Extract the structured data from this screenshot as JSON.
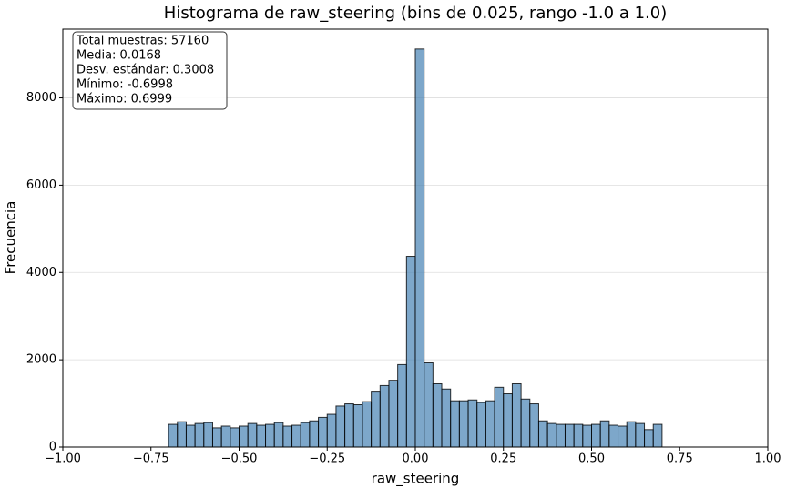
{
  "chart_data": {
    "type": "histogram",
    "title": "Histograma de raw_steering (bins de 0.025, rango -1.0 a 1.0)",
    "x_label": "raw_steering",
    "y_label": "Frecuencia",
    "stats": [
      "Total muestras: 57160",
      "Media: 0.0168",
      "Desv. estándar: 0.3008",
      "Mínimo: -0.6998",
      "Máximo: 0.6999"
    ],
    "color": "#4682b4",
    "grid": "y",
    "bins": [
      -1.0,
      -0.975,
      -0.95,
      -0.925,
      -0.9,
      -0.875,
      -0.85,
      -0.825,
      -0.8,
      -0.775,
      -0.75,
      -0.725,
      -0.7,
      -0.675,
      -0.65,
      -0.625,
      -0.6,
      -0.575,
      -0.55,
      -0.525,
      -0.5,
      -0.475,
      -0.45,
      -0.425,
      -0.4,
      -0.375,
      -0.35,
      -0.325,
      -0.3,
      -0.275,
      -0.25,
      -0.225,
      -0.2,
      -0.175,
      -0.15,
      -0.125,
      -0.1,
      -0.075,
      -0.05,
      -0.025,
      0.0,
      0.025,
      0.05,
      0.075,
      0.1,
      0.125,
      0.15,
      0.175,
      0.2,
      0.225,
      0.25,
      0.275,
      0.3,
      0.325,
      0.35,
      0.375,
      0.4,
      0.425,
      0.45,
      0.475,
      0.5,
      0.525,
      0.55,
      0.575,
      0.6,
      0.625,
      0.65,
      0.675,
      0.7,
      0.725,
      0.75,
      0.775,
      0.8,
      0.825,
      0.85,
      0.875,
      0.9,
      0.925,
      0.95,
      0.975,
      1.0
    ],
    "values": [
      0,
      0,
      0,
      0,
      0,
      0,
      0,
      0,
      0,
      0,
      0,
      0,
      520,
      580,
      500,
      540,
      560,
      440,
      480,
      440,
      480,
      540,
      500,
      520,
      560,
      480,
      500,
      560,
      600,
      680,
      750,
      940,
      990,
      970,
      1040,
      1260,
      1410,
      1530,
      1890,
      4370,
      9120,
      1930,
      1450,
      1330,
      1060,
      1060,
      1080,
      1020,
      1060,
      1370,
      1220,
      1450,
      1100,
      990,
      600,
      540,
      520,
      520,
      520,
      500,
      520,
      600,
      500,
      480,
      580,
      540,
      400,
      520,
      0,
      0,
      0,
      0,
      0,
      0,
      0,
      0,
      0,
      0,
      0,
      0
    ],
    "xlim": [
      -1.0,
      1.0
    ],
    "xticks": [
      {
        "value": -1.0,
        "label": "−1.00"
      },
      {
        "value": -0.75,
        "label": "−0.75"
      },
      {
        "value": -0.5,
        "label": "−0.50"
      },
      {
        "value": -0.25,
        "label": "−0.25"
      },
      {
        "value": 0,
        "label": "0.00"
      },
      {
        "value": 0.25,
        "label": "0.25"
      },
      {
        "value": 0.5,
        "label": "0.50"
      },
      {
        "value": 0.75,
        "label": "0.75"
      },
      {
        "value": 1.0,
        "label": "1.00"
      }
    ],
    "ylim": [
      0,
      9576
    ],
    "yticks": [
      0,
      2000,
      4000,
      6000,
      8000
    ]
  }
}
